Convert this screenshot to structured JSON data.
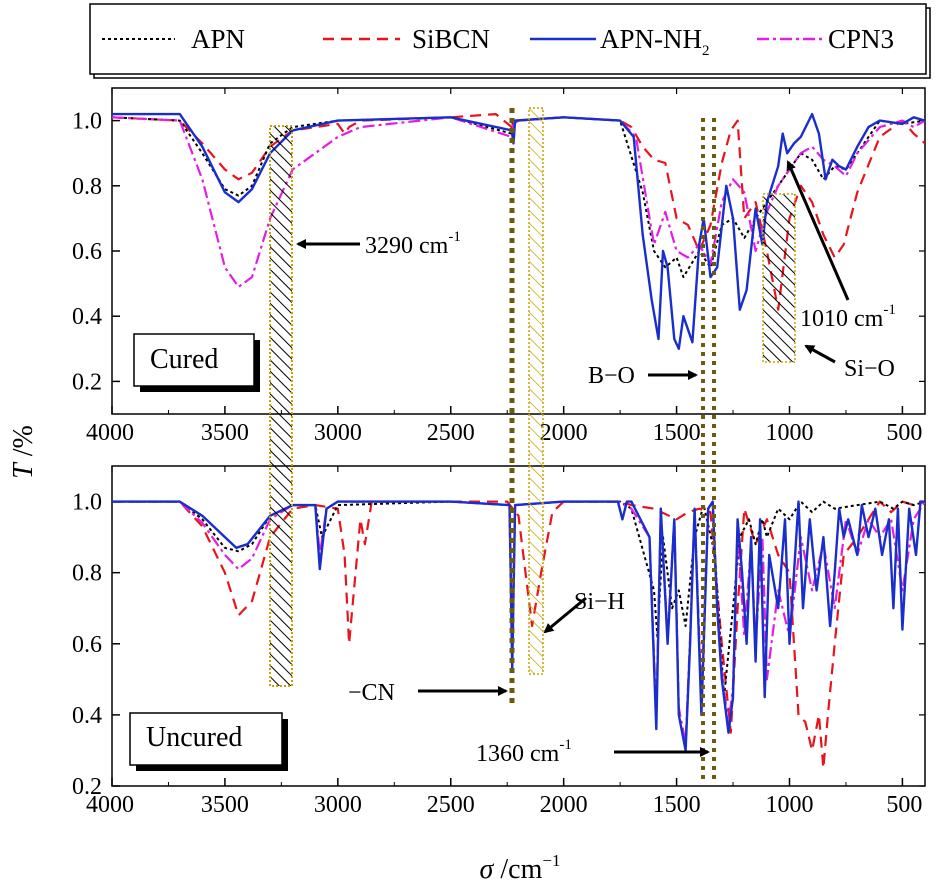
{
  "legend": {
    "items": [
      {
        "label": "APN",
        "color": "#000000",
        "dash": "dot"
      },
      {
        "label": "SiBCN",
        "color": "#e8141c",
        "dash": "dash"
      },
      {
        "label": "APN-NH",
        "sub": "2",
        "color": "#1a2ecc",
        "dash": "solid"
      },
      {
        "label": "CPN3",
        "color": "#e21ee6",
        "dash": "dashdot"
      }
    ]
  },
  "axes": {
    "ylabel_italic": "T",
    "ylabel_rest": " /%",
    "xlabel_italic": "σ",
    "xlabel_rest": " /cm",
    "xlabel_sup": "−1",
    "xticks": [
      4000,
      3500,
      3000,
      2500,
      2000,
      1500,
      1000,
      500
    ],
    "yticks": [
      "0.2",
      "0.4",
      "0.6",
      "0.8",
      "1.0"
    ]
  },
  "panels": {
    "top": {
      "label": "Cured"
    },
    "bottom": {
      "label": "Uncured"
    }
  },
  "annotations": {
    "a3290": "3290 cm",
    "a3290_sup": "-1",
    "a1010": "1010 cm",
    "a1010_sup": "-1",
    "sio": "Si−O",
    "bo": "B−O",
    "sih": "Si−H",
    "cn": "−CN",
    "a1360": "1360 cm",
    "a1360_sup": "-1"
  },
  "chart_data": [
    {
      "type": "line",
      "panel": "Cured",
      "xlabel": "σ /cm−1",
      "ylabel": "T /%",
      "xlim": [
        4000,
        400
      ],
      "ylim": [
        0.1,
        1.1
      ],
      "series": [
        {
          "name": "APN",
          "x": [
            4000,
            3700,
            3600,
            3500,
            3440,
            3380,
            3300,
            3200,
            3000,
            2500,
            2230,
            2225,
            2220,
            2000,
            1750,
            1650,
            1600,
            1550,
            1500,
            1470,
            1400,
            1350,
            1300,
            1250,
            1200,
            1150,
            1100,
            1000,
            950,
            900,
            850,
            800,
            750,
            700,
            600,
            500,
            400
          ],
          "y": [
            1.01,
            1.0,
            0.9,
            0.79,
            0.77,
            0.8,
            0.93,
            0.98,
            1.0,
            1.01,
            0.96,
            1.0,
            1.0,
            1.01,
            1.0,
            0.78,
            0.6,
            0.55,
            0.58,
            0.52,
            0.6,
            0.55,
            0.68,
            0.7,
            0.64,
            0.7,
            0.75,
            0.85,
            0.9,
            0.88,
            0.82,
            0.86,
            0.85,
            0.9,
            1.0,
            0.99,
            1.0
          ]
        },
        {
          "name": "SiBCN",
          "x": [
            4000,
            3700,
            3600,
            3500,
            3440,
            3380,
            3300,
            3200,
            3000,
            2970,
            2950,
            2900,
            2500,
            2300,
            2230,
            2220,
            2200,
            2000,
            1750,
            1700,
            1650,
            1600,
            1550,
            1500,
            1450,
            1400,
            1350,
            1300,
            1260,
            1230,
            1200,
            1150,
            1100,
            1050,
            1000,
            950,
            900,
            850,
            800,
            760,
            700,
            600,
            500,
            450,
            400
          ],
          "y": [
            1.01,
            1.0,
            0.93,
            0.85,
            0.82,
            0.84,
            0.92,
            0.97,
            0.99,
            0.96,
            0.98,
            1.0,
            1.01,
            1.02,
            0.98,
            1.0,
            1.0,
            1.01,
            1.0,
            0.98,
            0.92,
            0.88,
            0.87,
            0.7,
            0.68,
            0.6,
            0.68,
            0.87,
            0.97,
            1.0,
            0.7,
            0.75,
            0.6,
            0.42,
            0.7,
            0.8,
            0.75,
            0.65,
            0.58,
            0.62,
            0.78,
            0.95,
            1.0,
            0.96,
            0.93
          ]
        },
        {
          "name": "APN-NH2",
          "x": [
            4000,
            3700,
            3600,
            3500,
            3440,
            3380,
            3300,
            3200,
            3000,
            2500,
            2230,
            2222,
            2215,
            2000,
            1750,
            1690,
            1650,
            1610,
            1580,
            1560,
            1540,
            1510,
            1490,
            1470,
            1430,
            1400,
            1380,
            1350,
            1320,
            1280,
            1250,
            1220,
            1190,
            1150,
            1120,
            1100,
            1050,
            1030,
            1010,
            980,
            950,
            900,
            870,
            840,
            810,
            780,
            750,
            700,
            650,
            600,
            500,
            450,
            400
          ],
          "y": [
            1.02,
            1.02,
            0.92,
            0.78,
            0.75,
            0.79,
            0.9,
            0.97,
            1.0,
            1.01,
            0.97,
            0.93,
            1.0,
            1.01,
            1.0,
            0.95,
            0.65,
            0.45,
            0.33,
            0.6,
            0.55,
            0.33,
            0.3,
            0.4,
            0.32,
            0.62,
            0.7,
            0.52,
            0.55,
            0.8,
            0.7,
            0.42,
            0.48,
            0.73,
            0.62,
            0.75,
            0.86,
            0.96,
            0.9,
            0.93,
            0.95,
            1.02,
            0.96,
            0.82,
            0.88,
            0.86,
            0.85,
            0.92,
            0.98,
            1.0,
            0.99,
            1.01,
            1.0
          ]
        },
        {
          "name": "CPN3",
          "x": [
            4000,
            3700,
            3600,
            3500,
            3440,
            3380,
            3300,
            3200,
            3100,
            3000,
            2900,
            2500,
            2230,
            2222,
            2200,
            2000,
            1750,
            1680,
            1600,
            1550,
            1500,
            1450,
            1400,
            1350,
            1300,
            1250,
            1200,
            1150,
            1100,
            1050,
            1000,
            950,
            900,
            850,
            800,
            750,
            700,
            600,
            500,
            450,
            400
          ],
          "y": [
            1.01,
            1.0,
            0.82,
            0.55,
            0.49,
            0.52,
            0.7,
            0.85,
            0.9,
            0.95,
            0.98,
            1.01,
            0.95,
            0.99,
            1.0,
            1.01,
            1.0,
            0.95,
            0.62,
            0.72,
            0.6,
            0.58,
            0.62,
            0.56,
            0.75,
            0.82,
            0.78,
            0.6,
            0.72,
            0.8,
            0.85,
            0.9,
            0.92,
            0.88,
            0.86,
            0.83,
            0.9,
            0.98,
            1.0,
            0.98,
            1.0
          ]
        }
      ]
    },
    {
      "type": "line",
      "panel": "Uncured",
      "xlabel": "σ /cm−1",
      "ylabel": "T /%",
      "xlim": [
        4000,
        400
      ],
      "ylim": [
        0.2,
        1.1
      ],
      "series": [
        {
          "name": "APN",
          "x": [
            4000,
            3700,
            3600,
            3500,
            3440,
            3380,
            3300,
            3200,
            3100,
            3070,
            3000,
            2500,
            2240,
            2228,
            2215,
            2000,
            1750,
            1700,
            1600,
            1585,
            1560,
            1520,
            1490,
            1460,
            1420,
            1380,
            1330,
            1290,
            1250,
            1220,
            1180,
            1150,
            1120,
            1100,
            1050,
            1000,
            950,
            900,
            850,
            800,
            700,
            600,
            540,
            500,
            450,
            400
          ],
          "y": [
            1.0,
            1.0,
            0.95,
            0.87,
            0.86,
            0.88,
            0.96,
            0.99,
            0.99,
            0.9,
            0.99,
            1.0,
            0.99,
            0.6,
            0.99,
            1.0,
            1.0,
            0.98,
            0.75,
            0.62,
            0.9,
            0.7,
            0.75,
            0.65,
            0.9,
            0.99,
            0.85,
            0.45,
            0.7,
            0.9,
            0.95,
            0.88,
            0.95,
            0.9,
            0.98,
            0.95,
            1.0,
            0.97,
            1.0,
            0.98,
            0.99,
            1.0,
            0.98,
            1.0,
            0.99,
            1.0
          ]
        },
        {
          "name": "SiBCN",
          "x": [
            4000,
            3700,
            3600,
            3500,
            3440,
            3380,
            3300,
            3200,
            3100,
            3000,
            2970,
            2950,
            2900,
            2880,
            2850,
            2500,
            2250,
            2200,
            2140,
            2100,
            2050,
            2000,
            1750,
            1700,
            1600,
            1500,
            1450,
            1400,
            1350,
            1300,
            1260,
            1230,
            1200,
            1150,
            1100,
            1050,
            1000,
            960,
            930,
            900,
            870,
            850,
            830,
            800,
            760,
            700,
            650,
            600,
            550,
            500,
            450,
            400
          ],
          "y": [
            1.0,
            1.0,
            0.93,
            0.8,
            0.68,
            0.72,
            0.9,
            0.98,
            0.99,
            0.98,
            0.85,
            0.6,
            0.95,
            0.88,
            1.0,
            1.0,
            1.0,
            0.96,
            0.65,
            0.8,
            0.97,
            1.0,
            1.0,
            0.99,
            0.98,
            0.95,
            0.97,
            0.98,
            0.97,
            0.6,
            0.35,
            0.7,
            0.98,
            0.88,
            0.95,
            0.85,
            0.8,
            0.4,
            0.38,
            0.3,
            0.4,
            0.25,
            0.4,
            0.6,
            0.85,
            0.9,
            0.95,
            1.0,
            0.97,
            1.0,
            0.99,
            1.0
          ]
        },
        {
          "name": "APN-NH2",
          "x": [
            4000,
            3700,
            3600,
            3500,
            3450,
            3400,
            3300,
            3200,
            3100,
            3080,
            3050,
            3000,
            2500,
            2240,
            2228,
            2215,
            2000,
            1760,
            1740,
            1720,
            1700,
            1620,
            1590,
            1570,
            1540,
            1510,
            1490,
            1460,
            1440,
            1420,
            1390,
            1360,
            1340,
            1320,
            1300,
            1270,
            1250,
            1230,
            1210,
            1190,
            1170,
            1150,
            1130,
            1110,
            1090,
            1050,
            1020,
            1000,
            960,
            940,
            910,
            880,
            850,
            820,
            800,
            780,
            760,
            740,
            700,
            680,
            650,
            620,
            590,
            560,
            540,
            520,
            500,
            470,
            440,
            420,
            400
          ],
          "y": [
            1.0,
            1.0,
            0.96,
            0.9,
            0.87,
            0.88,
            0.96,
            0.99,
            0.99,
            0.81,
            0.98,
            1.0,
            1.0,
            0.99,
            0.53,
            0.99,
            1.0,
            1.0,
            0.95,
            1.0,
            1.0,
            0.9,
            0.36,
            0.98,
            0.6,
            0.95,
            0.4,
            0.3,
            0.6,
            0.98,
            0.4,
            0.98,
            1.0,
            0.7,
            0.5,
            0.35,
            0.45,
            0.95,
            0.8,
            0.6,
            0.9,
            0.55,
            0.95,
            0.45,
            0.85,
            0.7,
            0.95,
            0.6,
            1.0,
            0.7,
            0.95,
            0.75,
            0.9,
            0.65,
            0.8,
            0.98,
            0.9,
            0.95,
            0.85,
            0.99,
            0.9,
            0.98,
            0.85,
            0.95,
            0.7,
            0.98,
            0.64,
            0.98,
            0.85,
            1.0,
            1.0
          ]
        },
        {
          "name": "CPN3",
          "x": [
            4000,
            3700,
            3600,
            3500,
            3440,
            3380,
            3300,
            3200,
            3100,
            3080,
            3050,
            3000,
            2500,
            2240,
            2228,
            2215,
            2000,
            1760,
            1700,
            1620,
            1590,
            1570,
            1540,
            1510,
            1490,
            1460,
            1440,
            1420,
            1390,
            1360,
            1340,
            1320,
            1300,
            1270,
            1250,
            1230,
            1200,
            1170,
            1150,
            1120,
            1100,
            1050,
            1000,
            950,
            900,
            850,
            800,
            750,
            700,
            650,
            600,
            550,
            500,
            450,
            400
          ],
          "y": [
            1.0,
            1.0,
            0.94,
            0.85,
            0.81,
            0.84,
            0.95,
            0.99,
            0.99,
            0.85,
            0.98,
            1.0,
            1.0,
            0.99,
            0.6,
            0.99,
            1.0,
            1.0,
            0.98,
            0.9,
            0.4,
            0.98,
            0.62,
            0.95,
            0.42,
            0.32,
            0.62,
            0.98,
            0.45,
            0.98,
            1.0,
            0.72,
            0.52,
            0.37,
            0.48,
            0.93,
            0.62,
            0.88,
            0.6,
            0.9,
            0.5,
            0.75,
            0.62,
            0.9,
            0.75,
            0.88,
            0.7,
            0.95,
            0.85,
            0.95,
            0.9,
            0.95,
            0.75,
            0.95,
            1.0
          ]
        }
      ]
    }
  ]
}
